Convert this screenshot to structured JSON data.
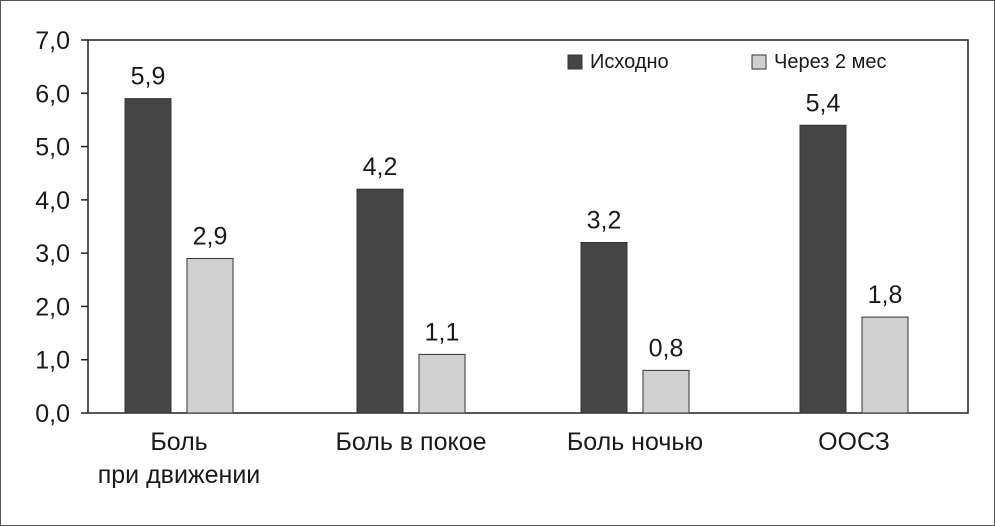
{
  "chart_data": {
    "type": "bar",
    "title": "",
    "xlabel": "",
    "ylabel": "",
    "categories": [
      [
        "Боль",
        "при движении"
      ],
      [
        "Боль в покое"
      ],
      [
        "Боль ночью"
      ],
      [
        "ООСЗ"
      ]
    ],
    "series": [
      {
        "name": "Исходно",
        "color": "#454545",
        "values": [
          5.9,
          4.2,
          3.2,
          5.4
        ],
        "labels": [
          "5,9",
          "4,2",
          "3,2",
          "5,4"
        ]
      },
      {
        "name": "Через 2 мес",
        "color": "#d0d0d0",
        "values": [
          2.9,
          1.1,
          0.8,
          1.8
        ],
        "labels": [
          "2,9",
          "1,1",
          "0,8",
          "1,8"
        ]
      }
    ],
    "ylim": [
      0,
      7
    ],
    "yticks": [
      {
        "value": 0,
        "label": "0,0"
      },
      {
        "value": 1,
        "label": "1,0"
      },
      {
        "value": 2,
        "label": "2,0"
      },
      {
        "value": 3,
        "label": "3,0"
      },
      {
        "value": 4,
        "label": "4,0"
      },
      {
        "value": 5,
        "label": "5,0"
      },
      {
        "value": 6,
        "label": "6,0"
      },
      {
        "value": 7,
        "label": "7,0"
      }
    ],
    "grid": false,
    "legend_position": "top-right"
  }
}
